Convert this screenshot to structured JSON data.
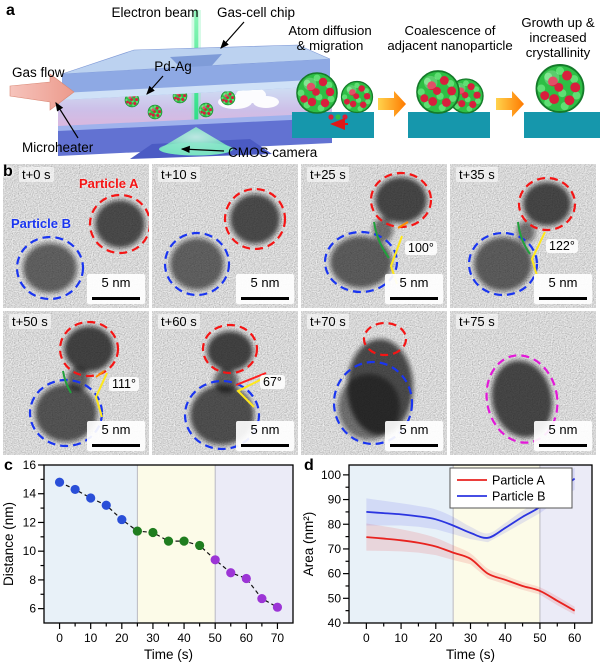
{
  "figure": {
    "panel_labels": {
      "a": "a",
      "b": "b",
      "c": "c",
      "d": "d"
    }
  },
  "panel_a": {
    "labels": {
      "electron_beam": "Electron beam",
      "gas_cell_chip": "Gas-cell chip",
      "gas_flow": "Gas flow",
      "pd_ag": "Pd-Ag",
      "microheater": "Microheater",
      "cmos_camera": "CMOS camera"
    },
    "stages": [
      {
        "line1": "Atom diffusion",
        "line2": "& migration"
      },
      {
        "line1": "Coalescence of",
        "line2": "adjacent nanoparticle"
      },
      {
        "line1": "Growth up &",
        "line2": "increased",
        "line3": "crystallinity"
      }
    ],
    "colors": {
      "substrate": "#1697ac",
      "particle_green": "#2ebf45",
      "particle_red": "#d81f3d",
      "arrow_orange": "#ff8c1a"
    }
  },
  "panel_b": {
    "particle_a_label": "Particle A",
    "particle_b_label": "Particle B",
    "scale_label": "5 nm",
    "tiles": [
      {
        "time": "t+0 s",
        "angle": ""
      },
      {
        "time": "t+10 s",
        "angle": ""
      },
      {
        "time": "t+25 s",
        "angle": "100°"
      },
      {
        "time": "t+35 s",
        "angle": "122°"
      },
      {
        "time": "t+50 s",
        "angle": "111°"
      },
      {
        "time": "t+60 s",
        "angle": "67°"
      },
      {
        "time": "t+70 s",
        "angle": ""
      },
      {
        "time": "t+75 s",
        "angle": ""
      }
    ],
    "colors": {
      "particle_a": "#f51515",
      "particle_b": "#1a35f0",
      "merged": "#e318d8"
    }
  },
  "chart_data": [
    {
      "panel": "c",
      "type": "scatter",
      "title": "",
      "xlabel": "Time (s)",
      "ylabel": "Distance (nm)",
      "x": [
        0,
        5,
        10,
        15,
        20,
        25,
        30,
        35,
        40,
        45,
        50,
        55,
        60,
        65,
        70
      ],
      "values": [
        14.8,
        14.3,
        13.7,
        13.2,
        12.2,
        11.4,
        11.3,
        10.7,
        10.7,
        10.4,
        9.4,
        8.5,
        8.1,
        6.7,
        6.1
      ],
      "point_groups": [
        {
          "from": 0,
          "to": 20,
          "color": "#2a4fd8"
        },
        {
          "from": 25,
          "to": 45,
          "color": "#1f7d1f"
        },
        {
          "from": 50,
          "to": 70,
          "color": "#9c35d6"
        }
      ],
      "line_style": "dashed",
      "xlim": [
        -5,
        75
      ],
      "ylim": [
        5,
        16
      ],
      "xticks": [
        0,
        10,
        20,
        30,
        40,
        50,
        60,
        70
      ],
      "yticks": [
        6,
        8,
        10,
        12,
        14,
        16
      ],
      "regions": [
        {
          "from": -5,
          "to": 25,
          "color": "#e8f1f8"
        },
        {
          "from": 25,
          "to": 50,
          "color": "#fcfbe8"
        },
        {
          "from": 50,
          "to": 75,
          "color": "#ebebf7"
        }
      ]
    },
    {
      "panel": "d",
      "type": "line",
      "title": "",
      "xlabel": "Time (s)",
      "ylabel": "Area (nm²)",
      "x": [
        0,
        5,
        10,
        15,
        20,
        25,
        30,
        35,
        40,
        45,
        50,
        55,
        60
      ],
      "series": [
        {
          "name": "Particle A",
          "color": "#e8231f",
          "band_color": "rgba(235,40,40,0.14)",
          "values": [
            74.8,
            74.2,
            73.5,
            72.5,
            71,
            68.5,
            66,
            60,
            57.5,
            55,
            53,
            49,
            45
          ],
          "band": [
            5.5,
            5,
            4.5,
            4,
            3.5,
            3,
            2.2,
            2,
            1.8,
            1.6,
            1.5,
            1.8,
            1.6
          ]
        },
        {
          "name": "Particle B",
          "color": "#2b35e0",
          "band_color": "rgba(60,70,230,0.13)",
          "values": [
            85,
            84.5,
            84,
            83.2,
            82,
            79.5,
            76.5,
            74.5,
            78.5,
            83,
            87,
            93,
            98.5
          ],
          "band": [
            5.5,
            5,
            4.5,
            4.2,
            4,
            3.5,
            2.5,
            1.8,
            2,
            2.5,
            2.5,
            3.5,
            4.5
          ]
        }
      ],
      "legend_position": "top-right",
      "xlim": [
        -5,
        65
      ],
      "ylim": [
        40,
        104
      ],
      "xticks": [
        0,
        10,
        20,
        30,
        40,
        50,
        60
      ],
      "yticks": [
        40,
        50,
        60,
        70,
        80,
        90,
        100
      ],
      "regions": [
        {
          "from": -5,
          "to": 25,
          "color": "#e8f1f8"
        },
        {
          "from": 25,
          "to": 50,
          "color": "#fcfbe8"
        },
        {
          "from": 50,
          "to": 65,
          "color": "#ebebf7"
        }
      ]
    }
  ]
}
